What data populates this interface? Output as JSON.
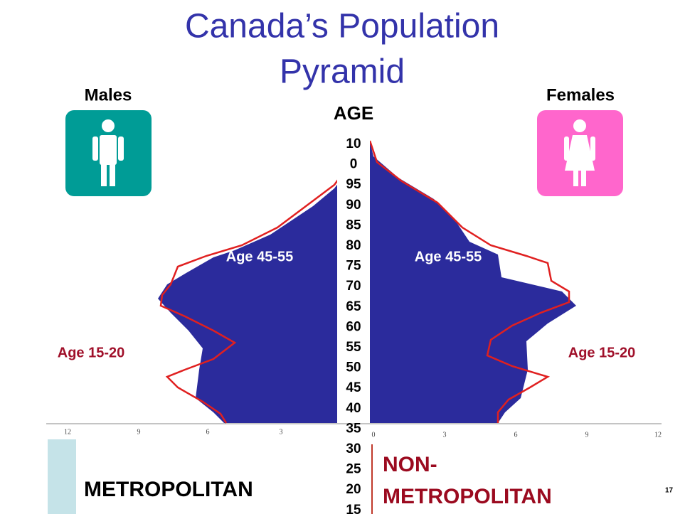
{
  "slide": {
    "title_lines": [
      "Canada’s Population",
      "Pyramid"
    ],
    "males": "Males",
    "females": "Females",
    "age_heading": "AGE",
    "age_labels": [
      "10",
      "0",
      "95",
      "90",
      "85",
      "80",
      "75",
      "70",
      "65",
      "60",
      "55",
      "50",
      "45",
      "40",
      "35",
      "30",
      "25",
      "20",
      "15"
    ],
    "left_axis_labels": [
      "12",
      "9",
      "6",
      "3"
    ],
    "right_axis_labels": [
      "0",
      "3",
      "6",
      "9",
      "12"
    ],
    "annotations": {
      "left_upper": "Age 45-55",
      "right_upper": "Age 45-55",
      "left_lower": "Age 15-20",
      "right_lower": "Age 15-20"
    },
    "metropolitan": "METROPOLITAN",
    "non_metro_lines": [
      "NON-",
      "METROPOLITAN"
    ],
    "page_number": "17"
  }
}
